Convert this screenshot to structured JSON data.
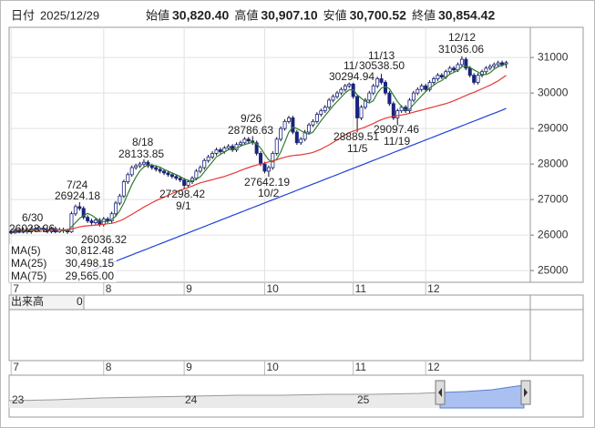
{
  "header": {
    "date_label": "日付",
    "date": "2025/12/29",
    "items": [
      {
        "label": "始値",
        "value": "30,820.40",
        "color": "#222222"
      },
      {
        "label": "高値",
        "value": "30,907.10",
        "color": "#e02020"
      },
      {
        "label": "安値",
        "value": "30,700.52",
        "color": "#1a9a1a"
      },
      {
        "label": "終値",
        "value": "30,854.42",
        "color": "#222222"
      }
    ]
  },
  "chart_data": {
    "type": "candlestick",
    "open": [
      26100,
      26060,
      26120,
      26080,
      26150,
      26100,
      26180,
      26140,
      26200,
      26160,
      26110,
      26180,
      26090,
      26150,
      26120,
      26090,
      26600,
      26800,
      26750,
      26500,
      26400,
      26350,
      26420,
      26300,
      26450,
      26400,
      26600,
      26900,
      27100,
      27500,
      27700,
      27900,
      27950,
      28000,
      28050,
      27950,
      27900,
      27850,
      27800,
      27750,
      27700,
      27650,
      27600,
      27550,
      27400,
      27500,
      27600,
      27800,
      27900,
      28100,
      28200,
      28300,
      28400,
      28350,
      28450,
      28500,
      28400,
      28550,
      28600,
      28700,
      28650,
      28600,
      28300,
      28000,
      27800,
      27900,
      28300,
      28700,
      29000,
      29200,
      29300,
      28900,
      28600,
      28700,
      28900,
      29100,
      29200,
      29400,
      29500,
      29600,
      29800,
      29900,
      30000,
      30100,
      30200,
      30250,
      29900,
      29300,
      29600,
      29800,
      30000,
      30200,
      30400,
      30300,
      30000,
      29700,
      29300,
      29500,
      29600,
      29500,
      29800,
      30000,
      30100,
      30200,
      30100,
      30300,
      30400,
      30500,
      30450,
      30600,
      30700,
      30650,
      30800,
      30950,
      30700,
      30500,
      30300,
      30500,
      30600,
      30700,
      30750,
      30800,
      30850,
      30820.4
    ],
    "high": [
      26150,
      26180,
      26180,
      26210,
      26210,
      26240,
      26240,
      26260,
      26260,
      26220,
      26240,
      26240,
      26210,
      26210,
      26180,
      26660,
      26860,
      26924.18,
      26810,
      26560,
      26460,
      26480,
      26480,
      26510,
      26510,
      26660,
      26960,
      27160,
      27560,
      27760,
      27960,
      28010,
      28060,
      28133.85,
      28110,
      28010,
      27960,
      27910,
      27860,
      27810,
      27760,
      27710,
      27660,
      27610,
      27560,
      27660,
      27860,
      27960,
      28160,
      28260,
      28360,
      28460,
      28460,
      28510,
      28560,
      28560,
      28610,
      28660,
      28760,
      28760,
      28786.63,
      28660,
      28360,
      28060,
      27960,
      28360,
      28760,
      29060,
      29260,
      29360,
      29360,
      28960,
      28760,
      28960,
      29160,
      29260,
      29460,
      29560,
      29660,
      29860,
      29960,
      30060,
      30160,
      30260,
      30294.94,
      30290,
      29960,
      29660,
      29860,
      30060,
      30260,
      30460,
      30538.5,
      30360,
      30060,
      29760,
      29560,
      29660,
      29660,
      29860,
      30060,
      30160,
      30260,
      30260,
      30360,
      30460,
      30560,
      30560,
      30660,
      30760,
      30760,
      30860,
      31036.06,
      31010,
      30760,
      30560,
      30560,
      30660,
      30760,
      30810,
      30860,
      30910,
      30910,
      30907.1
    ],
    "low": [
      26023.26,
      26040,
      26050,
      26050,
      26040,
      26040,
      26080,
      26080,
      26100,
      26050,
      26050,
      26050,
      26060,
      26060,
      26036.32,
      26060,
      26540,
      26690,
      26440,
      26340,
      26290,
      26290,
      26240,
      26240,
      26340,
      26340,
      26540,
      26840,
      27040,
      27440,
      27640,
      27840,
      27890,
      27940,
      27890,
      27840,
      27790,
      27740,
      27690,
      27640,
      27590,
      27540,
      27490,
      27298.42,
      27340,
      27440,
      27540,
      27740,
      27840,
      28040,
      28140,
      28240,
      28290,
      28290,
      28390,
      28340,
      28340,
      28490,
      28540,
      28590,
      28540,
      28240,
      27940,
      27740,
      27642.19,
      27840,
      28240,
      28640,
      28940,
      29140,
      28840,
      28540,
      28540,
      28640,
      28840,
      29040,
      29140,
      29340,
      29440,
      29540,
      29740,
      29840,
      29940,
      30040,
      30140,
      29840,
      28889.51,
      29240,
      29540,
      29740,
      29940,
      30140,
      30240,
      29940,
      29640,
      29240,
      29097.46,
      29440,
      29440,
      29440,
      29740,
      29940,
      30040,
      30040,
      30040,
      30240,
      30340,
      30390,
      30390,
      30540,
      30590,
      30590,
      30740,
      30640,
      30440,
      30240,
      30240,
      30440,
      30540,
      30640,
      30690,
      30740,
      30740,
      30700.52
    ],
    "close": [
      26060,
      26120,
      26080,
      26150,
      26100,
      26180,
      26140,
      26200,
      26160,
      26110,
      26180,
      26090,
      26150,
      26120,
      26090,
      26600,
      26800,
      26750,
      26500,
      26400,
      26350,
      26420,
      26300,
      26450,
      26400,
      26600,
      26900,
      27100,
      27500,
      27700,
      27900,
      27950,
      28000,
      28050,
      27950,
      27900,
      27850,
      27800,
      27750,
      27700,
      27650,
      27600,
      27550,
      27400,
      27500,
      27600,
      27800,
      27900,
      28100,
      28200,
      28300,
      28400,
      28350,
      28450,
      28500,
      28400,
      28550,
      28600,
      28700,
      28650,
      28600,
      28300,
      28000,
      27800,
      27900,
      28300,
      28700,
      29000,
      29200,
      29300,
      28900,
      28600,
      28700,
      28900,
      29100,
      29200,
      29400,
      29500,
      29600,
      29800,
      29900,
      30000,
      30100,
      30200,
      30250,
      29900,
      29300,
      29600,
      29800,
      30000,
      30200,
      30400,
      30300,
      30000,
      29700,
      29300,
      29500,
      29600,
      29500,
      29800,
      30000,
      30100,
      30200,
      30100,
      30300,
      30400,
      30500,
      30450,
      30600,
      30700,
      30650,
      30800,
      30950,
      30700,
      30500,
      30300,
      30500,
      30600,
      30700,
      30750,
      30800,
      30850,
      30800,
      30854.42
    ],
    "colors": {
      "up_fill": "#ffffff",
      "down_fill": "#1a237e",
      "body_stroke": "#1a237e",
      "wick": "#111111"
    },
    "series": [
      {
        "name": "MA(5)",
        "color": "#2e7d32",
        "last_label": "30,812.48",
        "values": [
          26080,
          26090,
          26100,
          26110,
          26100,
          26130,
          26130,
          26150,
          26160,
          26160,
          26160,
          26150,
          26140,
          26130,
          26130,
          26230,
          26350,
          26470,
          26550,
          26610,
          26560,
          26480,
          26400,
          26380,
          26380,
          26440,
          26530,
          26690,
          26900,
          27160,
          27420,
          27630,
          27810,
          27920,
          27970,
          27970,
          27950,
          27910,
          27850,
          27800,
          27750,
          27700,
          27650,
          27580,
          27540,
          27530,
          27570,
          27640,
          27780,
          27920,
          28060,
          28200,
          28270,
          28340,
          28400,
          28420,
          28450,
          28500,
          28550,
          28580,
          28620,
          28570,
          28450,
          28270,
          28120,
          28060,
          28140,
          28340,
          28620,
          28900,
          29040,
          29000,
          28940,
          28880,
          28840,
          28900,
          29060,
          29220,
          29360,
          29500,
          29640,
          29760,
          29880,
          30000,
          30090,
          30090,
          29950,
          29850,
          29770,
          29720,
          29780,
          30000,
          30140,
          30180,
          30120,
          29940,
          29760,
          29620,
          29520,
          29540,
          29680,
          29800,
          29920,
          30040,
          30140,
          30220,
          30300,
          30350,
          30450,
          30530,
          30580,
          30640,
          30740,
          30760,
          30720,
          30650,
          30590,
          30520,
          30520,
          30570,
          30670,
          30740,
          30780,
          30812.48
        ]
      },
      {
        "name": "MA(25)",
        "color": "#e53935",
        "last_label": "30,498.15",
        "values": [
          26150,
          26150,
          26150,
          26150,
          26150,
          26150,
          26150,
          26150,
          26150,
          26150,
          26150,
          26150,
          26150,
          26150,
          26150,
          26170,
          26200,
          26230,
          26250,
          26260,
          26270,
          26280,
          26290,
          26300,
          26320,
          26330,
          26360,
          26400,
          26450,
          26520,
          26580,
          26650,
          26720,
          26790,
          26850,
          26910,
          26970,
          27020,
          27070,
          27120,
          27170,
          27220,
          27260,
          27300,
          27340,
          27380,
          27430,
          27470,
          27500,
          27530,
          27560,
          27590,
          27620,
          27650,
          27690,
          27730,
          27770,
          27820,
          27860,
          27900,
          27940,
          27970,
          28000,
          28030,
          28060,
          28090,
          28120,
          28160,
          28190,
          28220,
          28240,
          28250,
          28260,
          28280,
          28300,
          28330,
          28370,
          28420,
          28480,
          28540,
          28610,
          28680,
          28750,
          28820,
          28880,
          28930,
          28960,
          29000,
          29040,
          29090,
          29140,
          29200,
          29250,
          29290,
          29320,
          29340,
          29360,
          29380,
          29400,
          29430,
          29460,
          29490,
          29520,
          29550,
          29580,
          29610,
          29640,
          29670,
          29700,
          29740,
          29780,
          29830,
          29880,
          29930,
          29980,
          30020,
          30070,
          30120,
          30170,
          30220,
          30280,
          30340,
          30420,
          30498.15
        ]
      },
      {
        "name": "MA(75)",
        "color": "#1e3fd8",
        "last_label": "29,565.00",
        "values": [
          null,
          null,
          null,
          null,
          null,
          null,
          null,
          null,
          null,
          null,
          null,
          null,
          null,
          null,
          null,
          null,
          null,
          null,
          null,
          null,
          25000,
          25044,
          25089,
          25133,
          25177,
          25222,
          25266,
          25310,
          25354,
          25399,
          25443,
          25487,
          25532,
          25576,
          25620,
          25665,
          25709,
          25753,
          25797,
          25842,
          25886,
          25930,
          25975,
          26019,
          26063,
          26108,
          26152,
          26196,
          26240,
          26285,
          26329,
          26373,
          26418,
          26462,
          26506,
          26551,
          26595,
          26639,
          26683,
          26728,
          26772,
          26816,
          26861,
          26905,
          26949,
          26994,
          27038,
          27082,
          27126,
          27171,
          27215,
          27259,
          27304,
          27348,
          27392,
          27437,
          27481,
          27525,
          27569,
          27614,
          27658,
          27702,
          27747,
          27791,
          27835,
          27880,
          27924,
          27968,
          28012,
          28057,
          28101,
          28145,
          28190,
          28234,
          28278,
          28323,
          28367,
          28411,
          28455,
          28500,
          28544,
          28588,
          28633,
          28677,
          28721,
          28766,
          28810,
          28854,
          28898,
          28943,
          28987,
          29031,
          29076,
          29120,
          29164,
          29209,
          29253,
          29297,
          29341,
          29386,
          29430,
          29474,
          29519,
          29565
        ]
      }
    ],
    "ylim": [
      24670,
      31850
    ],
    "yticks": [
      25000,
      26000,
      27000,
      28000,
      29000,
      30000,
      31000
    ],
    "xlim": [
      -0.5,
      129
    ],
    "xticks": [
      {
        "value": 0,
        "label": "7"
      },
      {
        "value": 23,
        "label": "8"
      },
      {
        "value": 43,
        "label": "9"
      },
      {
        "value": 63,
        "label": "10"
      },
      {
        "value": 85,
        "label": "11"
      },
      {
        "value": 103,
        "label": "12"
      }
    ],
    "grid": true,
    "annotations": [
      "6/30",
      "26023.26",
      "7/24",
      "26924.18",
      "26036.32",
      "8/18",
      "28133.85",
      "27298.42",
      "9/1",
      "9/26",
      "28786.63",
      "27642.19",
      "10/2",
      "11/13",
      "11/",
      "30538.50",
      "30294.94",
      "28889.51",
      "11/5",
      "29097.46",
      "11/19",
      "12/12",
      "31036.06"
    ]
  },
  "volume_panel": {
    "label": "出来高",
    "value": "0"
  },
  "navigator": {
    "labels": [
      "23",
      "24",
      "25"
    ]
  }
}
